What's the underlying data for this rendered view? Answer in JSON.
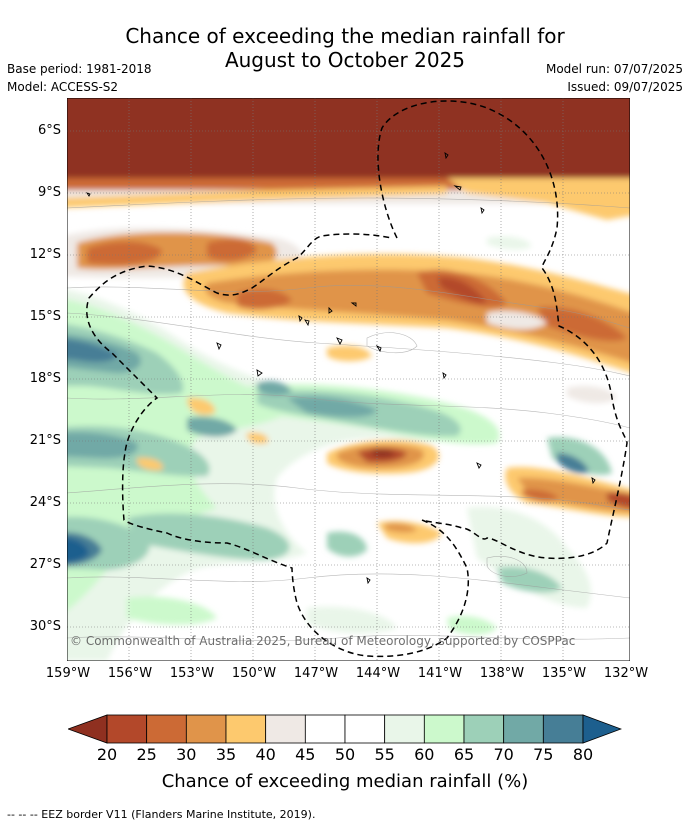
{
  "title": {
    "line1": "Chance of exceeding the median rainfall for",
    "line2": "August to October 2025"
  },
  "meta": {
    "base_period": "Base period: 1981-2018",
    "model": "Model: ACCESS-S2",
    "model_run": "Model run: 07/07/2025",
    "issued": "Issued: 09/07/2025"
  },
  "axes": {
    "lat_labels": [
      "6°S",
      "9°S",
      "12°S",
      "15°S",
      "18°S",
      "21°S",
      "24°S",
      "27°S",
      "30°S"
    ],
    "lon_labels": [
      "159°W",
      "156°W",
      "153°W",
      "150°W",
      "147°W",
      "144°W",
      "141°W",
      "138°W",
      "135°W",
      "132°W"
    ]
  },
  "copyright": "© Commonwealth of Australia 2025, Bureau of Meteorology, supported by COSPPac",
  "colorbar": {
    "ticks": [
      "20",
      "25",
      "30",
      "35",
      "40",
      "45",
      "50",
      "55",
      "60",
      "65",
      "70",
      "75",
      "80"
    ],
    "colors": [
      "#8f3020",
      "#b3482a",
      "#cc6a35",
      "#e0944a",
      "#fdc96e",
      "#efe9e5",
      "#ffffff",
      "#ffffff",
      "#e9f6e9",
      "#ccf9cc",
      "#9dd0b8",
      "#71a9a6",
      "#467e96",
      "#1d5f8e"
    ],
    "label": "Chance of exceeding median rainfall (%)"
  },
  "footnote": "--  --  -- EEZ border V11 (Flanders Marine Institute, 2019)."
}
